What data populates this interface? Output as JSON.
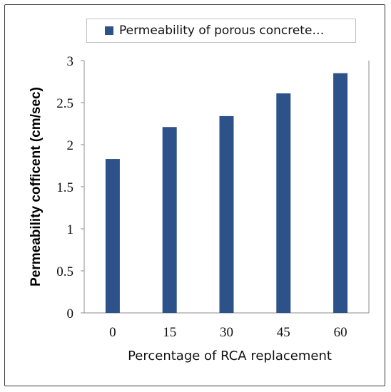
{
  "chart_data": {
    "type": "bar",
    "categories": [
      "0",
      "15",
      "30",
      "45",
      "60"
    ],
    "series": [
      {
        "name": "Permeability of porous concrete…",
        "values": [
          1.83,
          2.21,
          2.34,
          2.61,
          2.85
        ],
        "color": "#2d5289"
      }
    ],
    "xlabel": "Percentage of RCA replacement",
    "ylabel": "Permeability cofficent (cm/sec)",
    "ylim": [
      0,
      3
    ],
    "yticks": [
      "0",
      "0.5",
      "1",
      "1.5",
      "2",
      "2.5",
      "3"
    ],
    "grid": false,
    "legend_position": "top"
  }
}
